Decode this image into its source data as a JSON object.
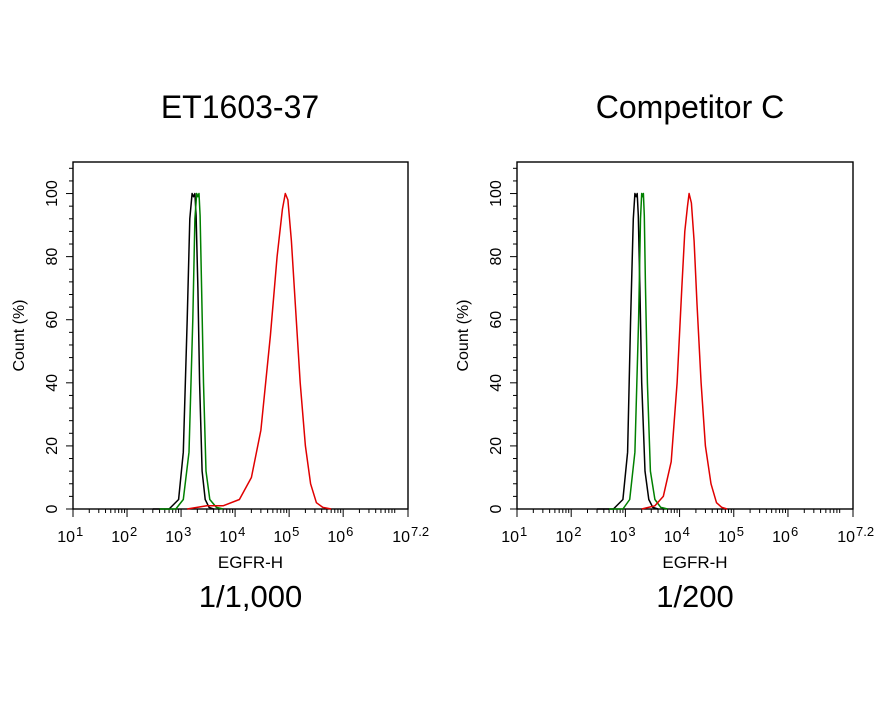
{
  "chart_data": [
    {
      "type": "line",
      "title": "ET1603-37",
      "xlabel": "EGFR-H",
      "ylabel": "Count  (%)",
      "dilution": "1/1,000",
      "x_scale": "log10",
      "xlim": [
        10,
        15848932
      ],
      "ylim": [
        0,
        110
      ],
      "x_ticks": [
        {
          "base": "10",
          "exp": "1"
        },
        {
          "base": "10",
          "exp": "2"
        },
        {
          "base": "10",
          "exp": "3"
        },
        {
          "base": "10",
          "exp": "4"
        },
        {
          "base": "10",
          "exp": "5"
        },
        {
          "base": "10",
          "exp": "6"
        },
        {
          "base": "10",
          "exp": "7.2"
        }
      ],
      "y_ticks": [
        "0",
        "20",
        "40",
        "60",
        "80",
        "100"
      ],
      "grid": false,
      "legend": "none",
      "series": [
        {
          "color": "#000000",
          "x": [
            300,
            600,
            900,
            1100,
            1300,
            1450,
            1600,
            1700,
            1800,
            1900,
            2050,
            2200,
            2450,
            2800,
            3300,
            4000
          ],
          "y": [
            0,
            0,
            3,
            18,
            60,
            92,
            100,
            99,
            100,
            93,
            70,
            40,
            12,
            3,
            0.5,
            0
          ]
        },
        {
          "color": "#008000",
          "x": [
            400,
            800,
            1100,
            1400,
            1650,
            1800,
            1950,
            2050,
            2150,
            2250,
            2400,
            2600,
            2900,
            3400,
            4500,
            6000
          ],
          "y": [
            0,
            0,
            3,
            18,
            60,
            92,
            100,
            99,
            100,
            93,
            70,
            40,
            12,
            3,
            0.5,
            0
          ]
        },
        {
          "color": "#e00000",
          "x": [
            1300,
            3000,
            6000,
            12000,
            20000,
            30000,
            45000,
            60000,
            75000,
            85000,
            95000,
            110000,
            130000,
            160000,
            200000,
            250000,
            320000,
            420000,
            600000
          ],
          "y": [
            0,
            1,
            1,
            3,
            10,
            25,
            55,
            80,
            95,
            100,
            98,
            85,
            65,
            40,
            20,
            8,
            2,
            0.5,
            0
          ]
        }
      ]
    },
    {
      "type": "line",
      "title": "Competitor C",
      "xlabel": "EGFR-H",
      "ylabel": "Count  (%)",
      "dilution": "1/200",
      "x_scale": "log10",
      "xlim": [
        10,
        15848932
      ],
      "ylim": [
        0,
        110
      ],
      "x_ticks": [
        {
          "base": "10",
          "exp": "1"
        },
        {
          "base": "10",
          "exp": "2"
        },
        {
          "base": "10",
          "exp": "3"
        },
        {
          "base": "10",
          "exp": "4"
        },
        {
          "base": "10",
          "exp": "5"
        },
        {
          "base": "10",
          "exp": "6"
        },
        {
          "base": "10",
          "exp": "7.2"
        }
      ],
      "y_ticks": [
        "0",
        "20",
        "40",
        "60",
        "80",
        "100"
      ],
      "grid": false,
      "legend": "none",
      "series": [
        {
          "color": "#000000",
          "x": [
            300,
            600,
            900,
            1100,
            1250,
            1400,
            1500,
            1580,
            1650,
            1730,
            1850,
            2000,
            2300,
            2700,
            3200,
            4000
          ],
          "y": [
            0,
            0,
            3,
            18,
            60,
            92,
            100,
            99,
            100,
            93,
            70,
            40,
            12,
            3,
            0.5,
            0
          ]
        },
        {
          "color": "#008000",
          "x": [
            500,
            900,
            1200,
            1500,
            1750,
            1900,
            2000,
            2080,
            2150,
            2230,
            2350,
            2550,
            2900,
            3500,
            4500,
            6000
          ],
          "y": [
            0,
            0,
            3,
            18,
            60,
            92,
            100,
            99,
            100,
            93,
            70,
            40,
            12,
            3,
            0.5,
            0
          ]
        },
        {
          "color": "#e00000",
          "x": [
            2000,
            3500,
            5000,
            7000,
            9000,
            11000,
            12500,
            14000,
            15000,
            16500,
            18500,
            21000,
            25000,
            30000,
            38000,
            48000,
            60000,
            75000
          ],
          "y": [
            0,
            1,
            4,
            15,
            40,
            70,
            88,
            96,
            100,
            97,
            85,
            65,
            40,
            20,
            8,
            2,
            0.5,
            0
          ]
        }
      ]
    }
  ]
}
